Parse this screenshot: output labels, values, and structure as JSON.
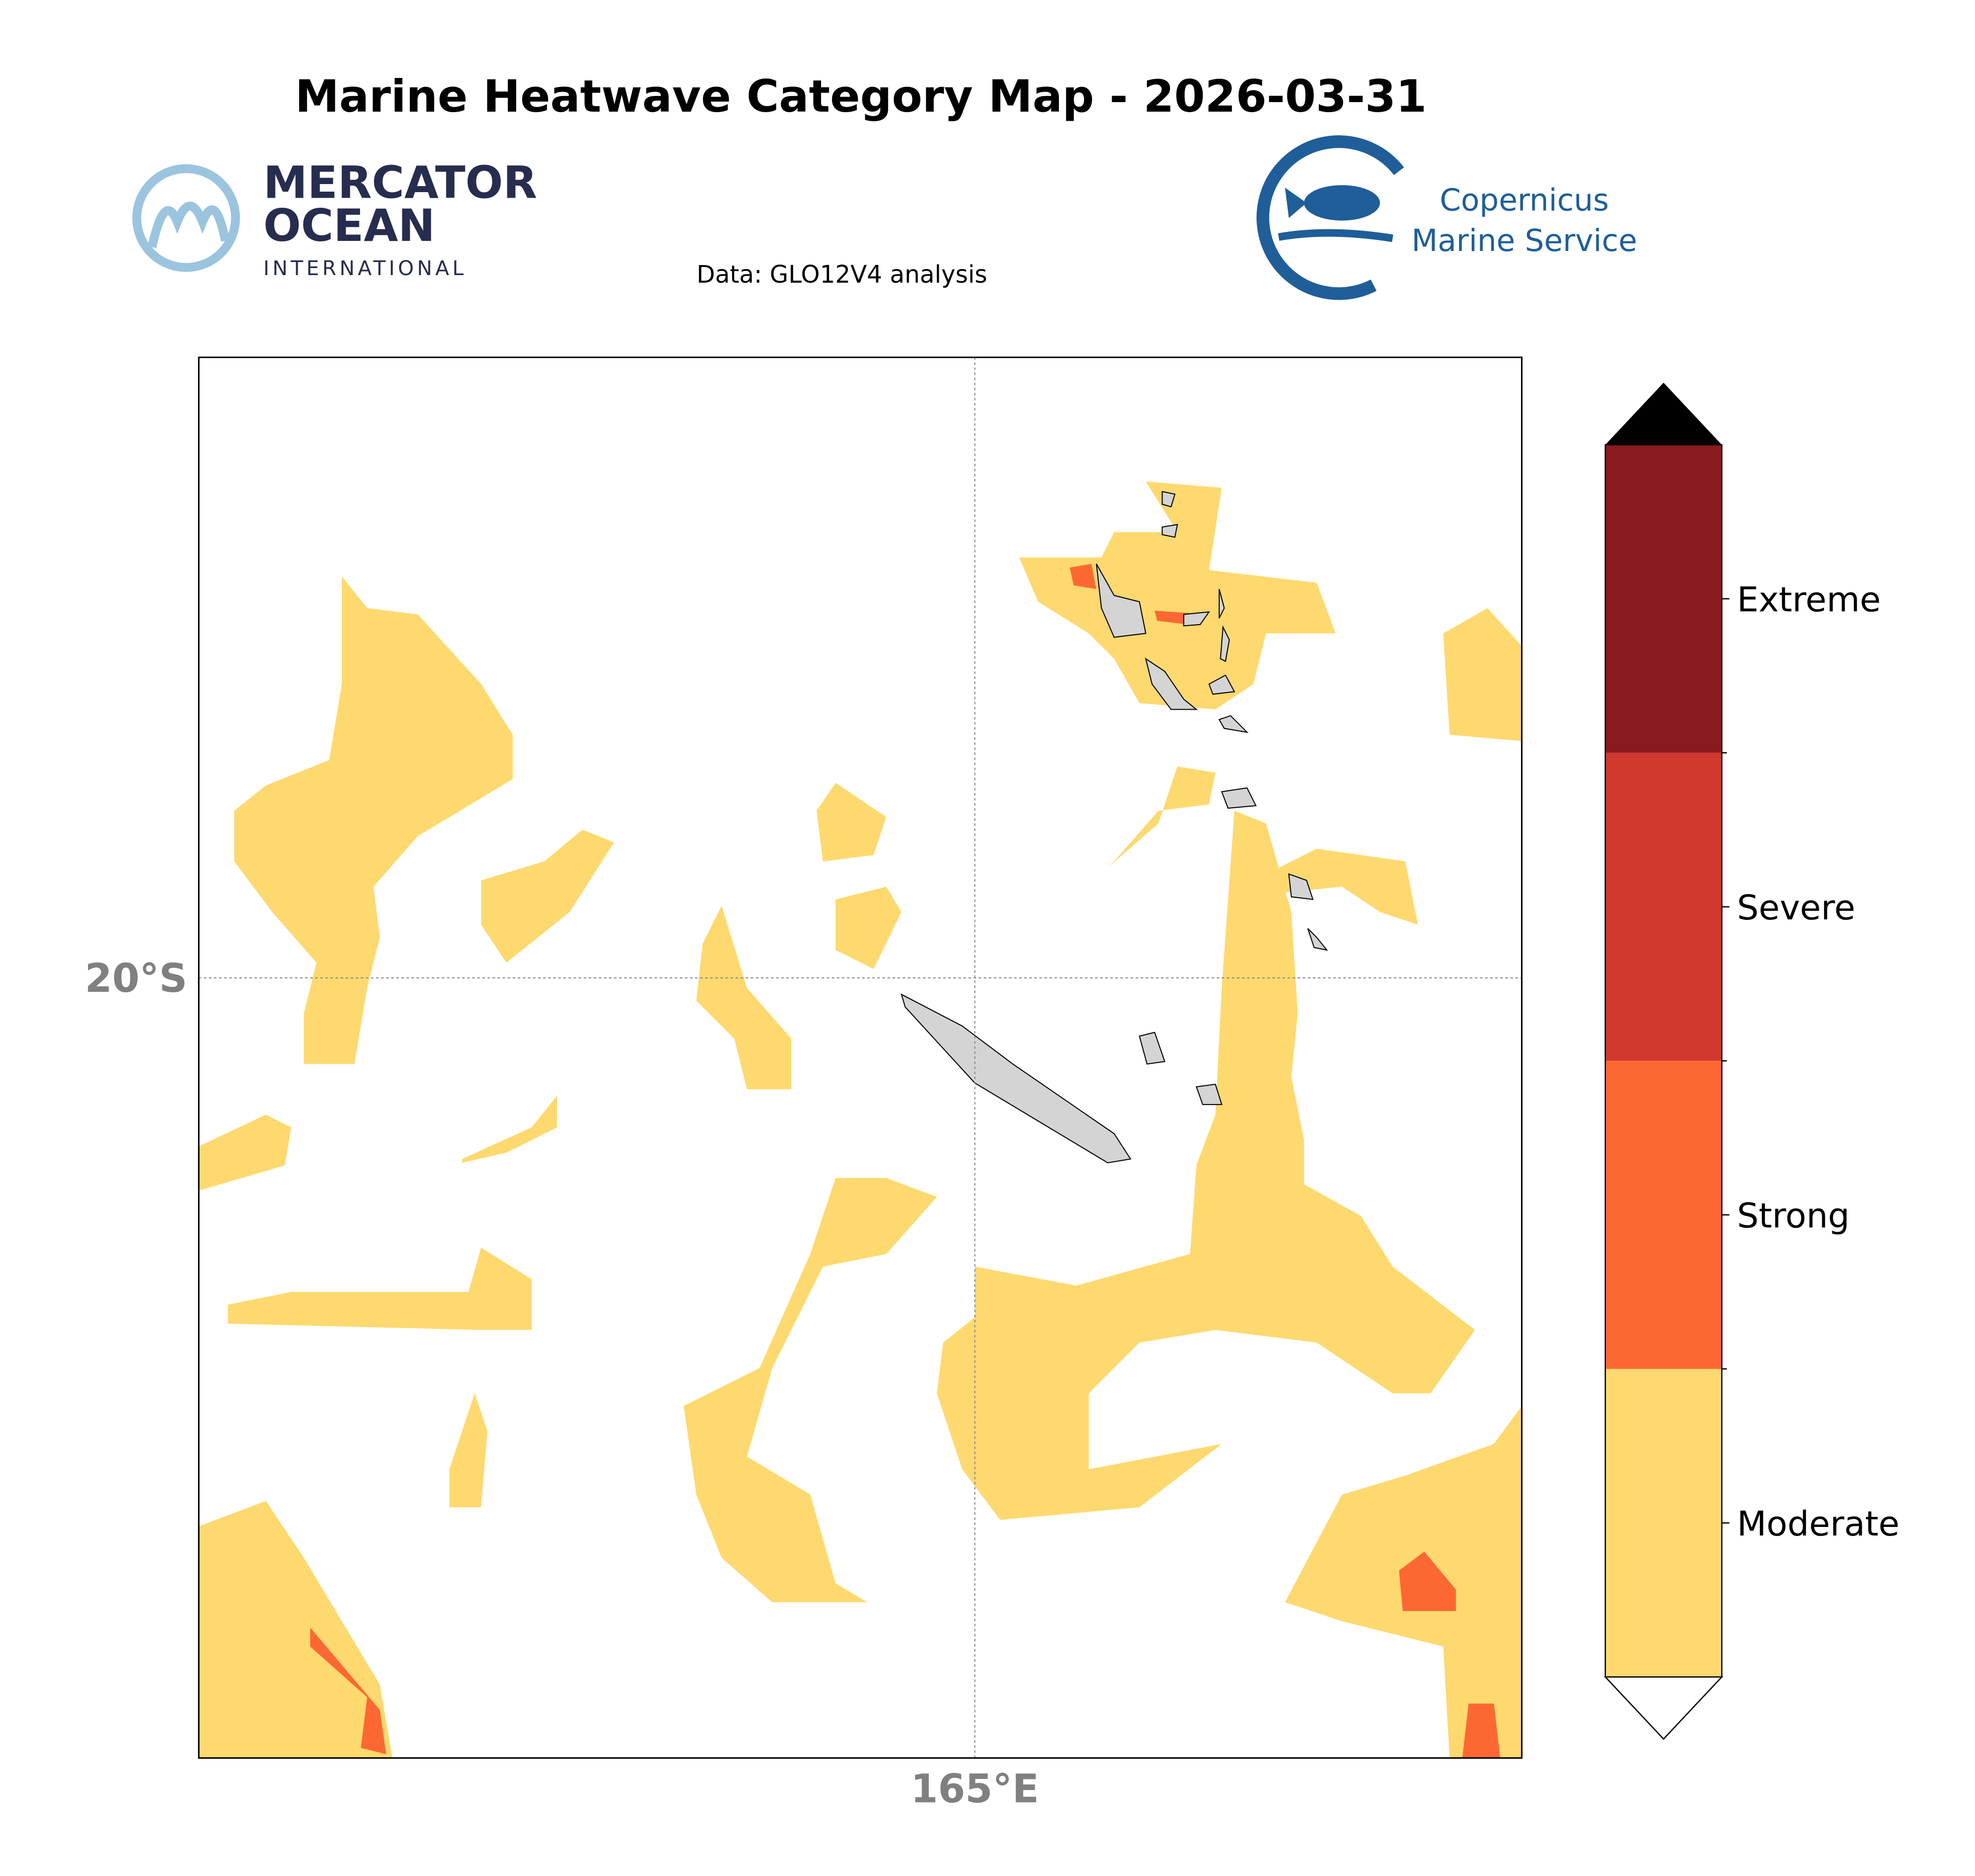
{
  "title": "Marine Heatwave Category Map - 2026-03-31",
  "subtitle": "Data: GLO12V4 analysis",
  "logos": {
    "mercator": [
      "MERCATOR",
      "OCEAN",
      "INTERNATIONAL"
    ],
    "copernicus": [
      "Copernicus",
      "Marine Service"
    ]
  },
  "map": {
    "lat_label": "20°S",
    "lon_label": "165°E"
  },
  "colorbar": {
    "categories": [
      {
        "label": "Moderate",
        "color": "#fdd96f"
      },
      {
        "label": "Strong",
        "color": "#fd6832"
      },
      {
        "label": "Severe",
        "color": "#d1392e"
      },
      {
        "label": "Extreme",
        "color": "#891a1e"
      }
    ]
  }
}
